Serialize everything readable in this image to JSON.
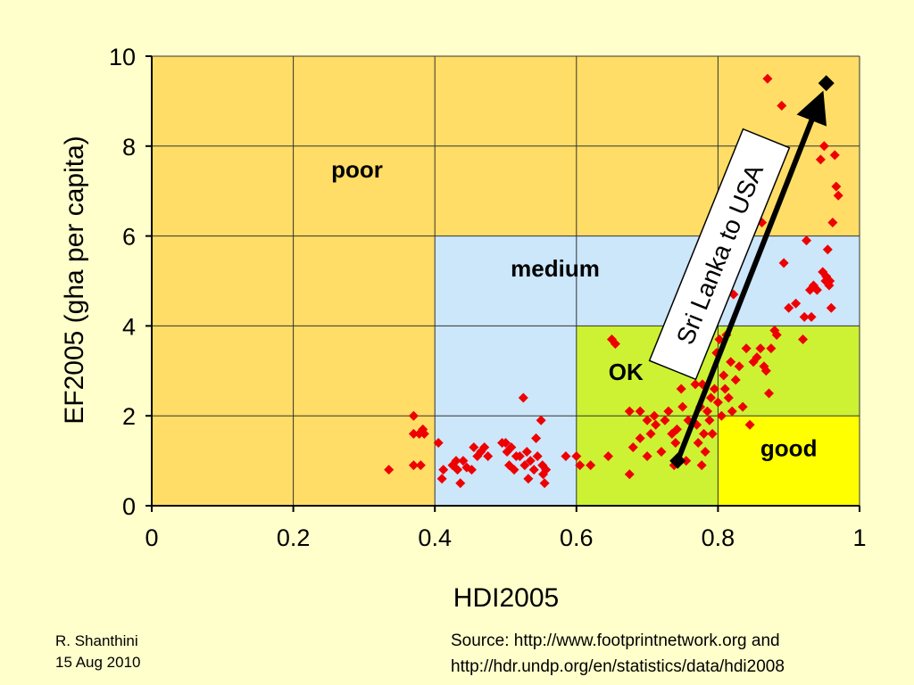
{
  "chart_data": {
    "type": "scatter",
    "title": "",
    "xlabel": "HDI2005",
    "ylabel": "EF2005 (gha per capita)",
    "xlim": [
      0,
      1
    ],
    "ylim": [
      0,
      10
    ],
    "x_ticks": [
      "0",
      "0.2",
      "0.4",
      "0.6",
      "0.8",
      "1"
    ],
    "y_ticks": [
      "0",
      "2",
      "4",
      "6",
      "8",
      "10"
    ],
    "grid": true,
    "regions": [
      {
        "name": "poor",
        "x": [
          0,
          1
        ],
        "y": [
          0,
          10
        ],
        "color": "#FFDD66",
        "label_at": [
          0.29,
          7.3
        ]
      },
      {
        "name": "medium",
        "x": [
          0.4,
          1
        ],
        "y": [
          0,
          6
        ],
        "color": "#CCE6FA",
        "label_at": [
          0.57,
          5.1
        ]
      },
      {
        "name": "OK",
        "x": [
          0.6,
          1
        ],
        "y": [
          0,
          4
        ],
        "color": "#CCF233",
        "label_at": [
          0.67,
          2.8
        ]
      },
      {
        "name": "good",
        "x": [
          0.8,
          1
        ],
        "y": [
          0,
          2
        ],
        "color": "#FFFF00",
        "label_at": [
          0.9,
          1.1
        ]
      }
    ],
    "points_color": "#EE0000",
    "points": [
      [
        0.335,
        0.8
      ],
      [
        0.37,
        2.0
      ],
      [
        0.37,
        1.6
      ],
      [
        0.37,
        0.9
      ],
      [
        0.378,
        1.6
      ],
      [
        0.38,
        0.9
      ],
      [
        0.383,
        1.7
      ],
      [
        0.385,
        1.6
      ],
      [
        0.405,
        1.4
      ],
      [
        0.41,
        0.6
      ],
      [
        0.412,
        0.8
      ],
      [
        0.425,
        0.9
      ],
      [
        0.43,
        1.0
      ],
      [
        0.432,
        0.8
      ],
      [
        0.436,
        0.5
      ],
      [
        0.44,
        1.0
      ],
      [
        0.445,
        0.85
      ],
      [
        0.452,
        0.8
      ],
      [
        0.455,
        1.3
      ],
      [
        0.46,
        1.1
      ],
      [
        0.465,
        1.2
      ],
      [
        0.47,
        1.3
      ],
      [
        0.475,
        1.1
      ],
      [
        0.495,
        1.4
      ],
      [
        0.5,
        1.4
      ],
      [
        0.502,
        1.2
      ],
      [
        0.505,
        0.9
      ],
      [
        0.508,
        1.3
      ],
      [
        0.512,
        0.8
      ],
      [
        0.515,
        1.1
      ],
      [
        0.52,
        1.1
      ],
      [
        0.525,
        2.4
      ],
      [
        0.527,
        0.9
      ],
      [
        0.53,
        1.2
      ],
      [
        0.532,
        0.6
      ],
      [
        0.535,
        1.0
      ],
      [
        0.54,
        0.8
      ],
      [
        0.543,
        1.5
      ],
      [
        0.545,
        1.1
      ],
      [
        0.55,
        1.9
      ],
      [
        0.552,
        0.9
      ],
      [
        0.553,
        0.7
      ],
      [
        0.555,
        0.5
      ],
      [
        0.557,
        0.8
      ],
      [
        0.585,
        1.1
      ],
      [
        0.6,
        1.1
      ],
      [
        0.605,
        0.9
      ],
      [
        0.62,
        0.9
      ],
      [
        0.645,
        1.1
      ],
      [
        0.65,
        3.7
      ],
      [
        0.655,
        3.6
      ],
      [
        0.675,
        0.7
      ],
      [
        0.675,
        2.1
      ],
      [
        0.68,
        1.3
      ],
      [
        0.69,
        1.5
      ],
      [
        0.69,
        2.1
      ],
      [
        0.7,
        1.1
      ],
      [
        0.7,
        1.9
      ],
      [
        0.705,
        1.6
      ],
      [
        0.71,
        2.0
      ],
      [
        0.712,
        1.8
      ],
      [
        0.72,
        1.2
      ],
      [
        0.725,
        1.9
      ],
      [
        0.73,
        2.1
      ],
      [
        0.735,
        1.6
      ],
      [
        0.738,
        0.9
      ],
      [
        0.74,
        1.4
      ],
      [
        0.742,
        1.7
      ],
      [
        0.745,
        1.0
      ],
      [
        0.748,
        2.6
      ],
      [
        0.75,
        2.2
      ],
      [
        0.755,
        1.0
      ],
      [
        0.758,
        1.9
      ],
      [
        0.76,
        3.0
      ],
      [
        0.765,
        3.2
      ],
      [
        0.768,
        2.7
      ],
      [
        0.77,
        1.8
      ],
      [
        0.772,
        1.4
      ],
      [
        0.775,
        2.2
      ],
      [
        0.777,
        0.9
      ],
      [
        0.778,
        2.7
      ],
      [
        0.78,
        1.6
      ],
      [
        0.782,
        1.2
      ],
      [
        0.785,
        2.1
      ],
      [
        0.788,
        1.9
      ],
      [
        0.79,
        2.4
      ],
      [
        0.792,
        1.6
      ],
      [
        0.795,
        2.6
      ],
      [
        0.798,
        3.4
      ],
      [
        0.8,
        2.3
      ],
      [
        0.802,
        3.7
      ],
      [
        0.805,
        2.0
      ],
      [
        0.808,
        2.9
      ],
      [
        0.81,
        2.6
      ],
      [
        0.812,
        3.8
      ],
      [
        0.815,
        2.4
      ],
      [
        0.818,
        3.2
      ],
      [
        0.82,
        2.1
      ],
      [
        0.822,
        4.7
      ],
      [
        0.825,
        2.8
      ],
      [
        0.83,
        3.1
      ],
      [
        0.835,
        2.2
      ],
      [
        0.84,
        3.5
      ],
      [
        0.845,
        1.8
      ],
      [
        0.85,
        3.2
      ],
      [
        0.855,
        3.3
      ],
      [
        0.86,
        3.5
      ],
      [
        0.862,
        6.3
      ],
      [
        0.865,
        3.1
      ],
      [
        0.868,
        3.0
      ],
      [
        0.87,
        9.5
      ],
      [
        0.872,
        2.5
      ],
      [
        0.875,
        3.5
      ],
      [
        0.88,
        3.9
      ],
      [
        0.883,
        3.8
      ],
      [
        0.89,
        8.9
      ],
      [
        0.893,
        5.4
      ],
      [
        0.9,
        4.4
      ],
      [
        0.91,
        4.5
      ],
      [
        0.92,
        3.7
      ],
      [
        0.922,
        4.2
      ],
      [
        0.925,
        5.9
      ],
      [
        0.93,
        4.8
      ],
      [
        0.932,
        4.2
      ],
      [
        0.935,
        4.9
      ],
      [
        0.94,
        4.8
      ],
      [
        0.945,
        7.7
      ],
      [
        0.948,
        5.2
      ],
      [
        0.95,
        8.0
      ],
      [
        0.952,
        5.0
      ],
      [
        0.953,
        5.1
      ],
      [
        0.955,
        5.7
      ],
      [
        0.957,
        4.9
      ],
      [
        0.958,
        5.0
      ],
      [
        0.96,
        4.4
      ],
      [
        0.962,
        6.3
      ],
      [
        0.965,
        7.8
      ],
      [
        0.967,
        7.1
      ],
      [
        0.97,
        6.9
      ]
    ],
    "highlight": {
      "start": [
        0.743,
        1.0
      ],
      "end": [
        0.953,
        9.4
      ],
      "label": "Sri Lanka to USA"
    }
  },
  "footer": {
    "author_name": "R. Shanthini",
    "author_date": "15 Aug 2010",
    "source_line1": "Source: http://www.footprintnetwork.org and",
    "source_line2": "http://hdr.undp.org/en/statistics/data/hdi2008"
  }
}
